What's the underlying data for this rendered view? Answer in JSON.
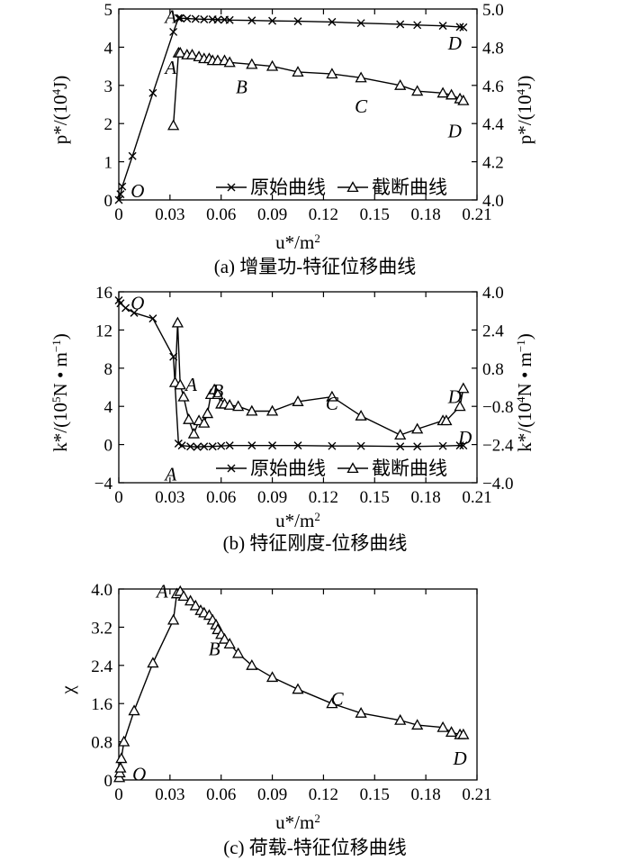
{
  "chart_data": [
    {
      "type": "line",
      "caption": "(a) 增量功-特征位移曲线",
      "xlabel": "u*/m",
      "xlabel_sup": "2",
      "ylabel": "p*/(10",
      "ylabel_sup": "4",
      "ylabel_tail": "J)",
      "y2label": "p*/(10",
      "y2label_sup": "4",
      "y2label_tail": "J)",
      "xlim": [
        0,
        0.21
      ],
      "ylim": [
        0,
        5
      ],
      "y2lim": [
        4.0,
        5.0
      ],
      "xticks": [
        "0",
        "0.03",
        "0.06",
        "0.09",
        "0.12",
        "0.15",
        "0.18",
        "0.21"
      ],
      "yticks": [
        "0",
        "1",
        "2",
        "3",
        "4",
        "5"
      ],
      "y2ticks": [
        "4.0",
        "4.2",
        "4.4",
        "4.6",
        "4.8",
        "5.0"
      ],
      "series": [
        {
          "name": "原始曲线",
          "marker": "x",
          "axis": "left",
          "x": [
            0,
            0.001,
            0.002,
            0.008,
            0.02,
            0.032,
            0.035,
            0.036,
            0.04,
            0.045,
            0.05,
            0.055,
            0.058,
            0.062,
            0.065,
            0.078,
            0.09,
            0.105,
            0.125,
            0.142,
            0.165,
            0.175,
            0.19,
            0.2,
            0.202
          ],
          "y": [
            0,
            0.15,
            0.35,
            1.15,
            2.8,
            4.4,
            4.76,
            4.76,
            4.75,
            4.74,
            4.73,
            4.73,
            4.72,
            4.72,
            4.71,
            4.7,
            4.69,
            4.68,
            4.66,
            4.63,
            4.6,
            4.58,
            4.56,
            4.53,
            4.52
          ]
        },
        {
          "name": "截断曲线",
          "marker": "triangle",
          "axis": "right",
          "x": [
            0.032,
            0.035,
            0.036,
            0.04,
            0.043,
            0.047,
            0.05,
            0.053,
            0.055,
            0.058,
            0.062,
            0.065,
            0.078,
            0.09,
            0.105,
            0.125,
            0.142,
            0.165,
            0.175,
            0.19,
            0.195,
            0.2,
            0.202
          ],
          "y": [
            4.39,
            4.77,
            4.77,
            4.76,
            4.76,
            4.75,
            4.74,
            4.74,
            4.73,
            4.73,
            4.73,
            4.72,
            4.71,
            4.7,
            4.67,
            4.66,
            4.64,
            4.6,
            4.57,
            4.56,
            4.55,
            4.53,
            4.52
          ]
        }
      ],
      "annotations": [
        {
          "text": "A",
          "x": 0.0305,
          "y": 4.8,
          "axis": "left"
        },
        {
          "text": "D",
          "x": 0.197,
          "y": 4.1,
          "axis": "left"
        },
        {
          "text": "A",
          "x": 0.0305,
          "y": 3.47,
          "axis": "left"
        },
        {
          "text": "B",
          "x": 0.072,
          "y": 2.96,
          "axis": "left"
        },
        {
          "text": "C",
          "x": 0.142,
          "y": 2.45,
          "axis": "left"
        },
        {
          "text": "D",
          "x": 0.197,
          "y": 1.8,
          "axis": "left"
        },
        {
          "text": "O",
          "x": 0.011,
          "y": 0.24,
          "axis": "left"
        }
      ],
      "legend": "bottom-right"
    },
    {
      "type": "line",
      "caption": "(b) 特征刚度-位移曲线",
      "xlabel": "u*/m",
      "xlabel_sup": "2",
      "ylabel": "k*/(10",
      "ylabel_sup": "5",
      "ylabel_tail": "N • m",
      "ylabel_tail_sup": "−1",
      "y2label": "k*/(10",
      "y2label_sup": "4",
      "y2label_tail": "N • m",
      "y2label_tail_sup": "−1",
      "xlim": [
        0,
        0.21
      ],
      "ylim": [
        -4,
        16
      ],
      "y2lim": [
        -4.0,
        4.0
      ],
      "xticks": [
        "0",
        "0.03",
        "0.06",
        "0.09",
        "0.12",
        "0.15",
        "0.18",
        "0.21"
      ],
      "yticks": [
        "−4",
        "0",
        "4",
        "8",
        "12",
        "16"
      ],
      "y2ticks": [
        "−4.0",
        "−2.4",
        "−0.8",
        "0.8",
        "2.4",
        "4.0"
      ],
      "series": [
        {
          "name": "原始曲线",
          "marker": "x",
          "axis": "left",
          "x": [
            0,
            0.001,
            0.004,
            0.009,
            0.02,
            0.032,
            0.035,
            0.037,
            0.042,
            0.046,
            0.05,
            0.055,
            0.06,
            0.065,
            0.078,
            0.09,
            0.105,
            0.125,
            0.142,
            0.165,
            0.175,
            0.19,
            0.2,
            0.202
          ],
          "y": [
            15.1,
            14.8,
            14.3,
            13.8,
            13.2,
            9.2,
            0.1,
            -0.1,
            -0.2,
            -0.25,
            -0.2,
            -0.2,
            -0.15,
            -0.1,
            -0.1,
            -0.1,
            -0.1,
            -0.15,
            -0.15,
            -0.2,
            -0.2,
            -0.15,
            -0.1,
            -0.1
          ]
        },
        {
          "name": "截断曲线",
          "marker": "triangle",
          "axis": "right",
          "x": [
            0.033,
            0.0345,
            0.036,
            0.038,
            0.041,
            0.044,
            0.047,
            0.05,
            0.052,
            0.054,
            0.056,
            0.058,
            0.06,
            0.062,
            0.065,
            0.07,
            0.078,
            0.09,
            0.105,
            0.125,
            0.142,
            0.165,
            0.175,
            0.19,
            0.192,
            0.2,
            0.202
          ],
          "y": [
            0.2,
            2.7,
            0.1,
            -0.4,
            -1.35,
            -1.95,
            -1.4,
            -1.5,
            -1.1,
            -0.3,
            -0.1,
            -0.3,
            -0.7,
            -0.7,
            -0.75,
            -0.8,
            -1.0,
            -1.0,
            -0.6,
            -0.4,
            -1.2,
            -2.0,
            -1.75,
            -1.4,
            -1.4,
            -0.8,
            -0.05
          ]
        }
      ],
      "annotations": [
        {
          "text": "O",
          "x": 0.011,
          "y": 14.8,
          "axis": "left"
        },
        {
          "text": "A",
          "x": 0.0425,
          "y": 6.3,
          "axis": "left"
        },
        {
          "text": "B",
          "x": 0.058,
          "y": 5.6,
          "axis": "left"
        },
        {
          "text": "C",
          "x": 0.125,
          "y": 4.3,
          "axis": "left"
        },
        {
          "text": "D",
          "x": 0.197,
          "y": 5.0,
          "axis": "left"
        },
        {
          "text": "D",
          "x": 0.203,
          "y": 0.7,
          "axis": "left"
        },
        {
          "text": "A",
          "x": 0.0305,
          "y": -3.1,
          "axis": "left"
        }
      ],
      "legend": "bottom-right"
    },
    {
      "type": "line",
      "caption": "(c) 荷载-特征位移曲线",
      "xlabel": "u*/m",
      "xlabel_sup": "2",
      "ylabel": "χ",
      "xlim": [
        0,
        0.21
      ],
      "ylim": [
        0,
        4.0
      ],
      "xticks": [
        "0",
        "0.03",
        "0.06",
        "0.09",
        "0.12",
        "0.15",
        "0.18",
        "0.21"
      ],
      "yticks": [
        "0",
        "0.8",
        "1.6",
        "2.4",
        "3.2",
        "4.0"
      ],
      "series": [
        {
          "name": "",
          "marker": "triangle",
          "axis": "left",
          "x": [
            0.0003,
            0.0006,
            0.001,
            0.0015,
            0.003,
            0.009,
            0.02,
            0.032,
            0.034,
            0.036,
            0.038,
            0.042,
            0.045,
            0.048,
            0.05,
            0.053,
            0.055,
            0.057,
            0.058,
            0.06,
            0.062,
            0.065,
            0.07,
            0.078,
            0.09,
            0.105,
            0.125,
            0.142,
            0.165,
            0.175,
            0.19,
            0.195,
            0.2,
            0.202
          ],
          "y": [
            0.05,
            0.15,
            0.25,
            0.45,
            0.8,
            1.45,
            2.45,
            3.35,
            3.9,
            3.95,
            3.85,
            3.75,
            3.65,
            3.55,
            3.5,
            3.45,
            3.35,
            3.25,
            3.15,
            3.05,
            2.95,
            2.85,
            2.65,
            2.4,
            2.15,
            1.9,
            1.6,
            1.4,
            1.25,
            1.15,
            1.1,
            1.0,
            0.95,
            0.95
          ]
        }
      ],
      "annotations": [
        {
          "text": "A",
          "x": 0.0255,
          "y": 3.95,
          "axis": "left"
        },
        {
          "text": "B",
          "x": 0.056,
          "y": 2.75,
          "axis": "left"
        },
        {
          "text": "C",
          "x": 0.128,
          "y": 1.7,
          "axis": "left"
        },
        {
          "text": "D",
          "x": 0.2,
          "y": 0.45,
          "axis": "left"
        },
        {
          "text": "O",
          "x": 0.012,
          "y": 0.12,
          "axis": "left"
        }
      ]
    }
  ]
}
